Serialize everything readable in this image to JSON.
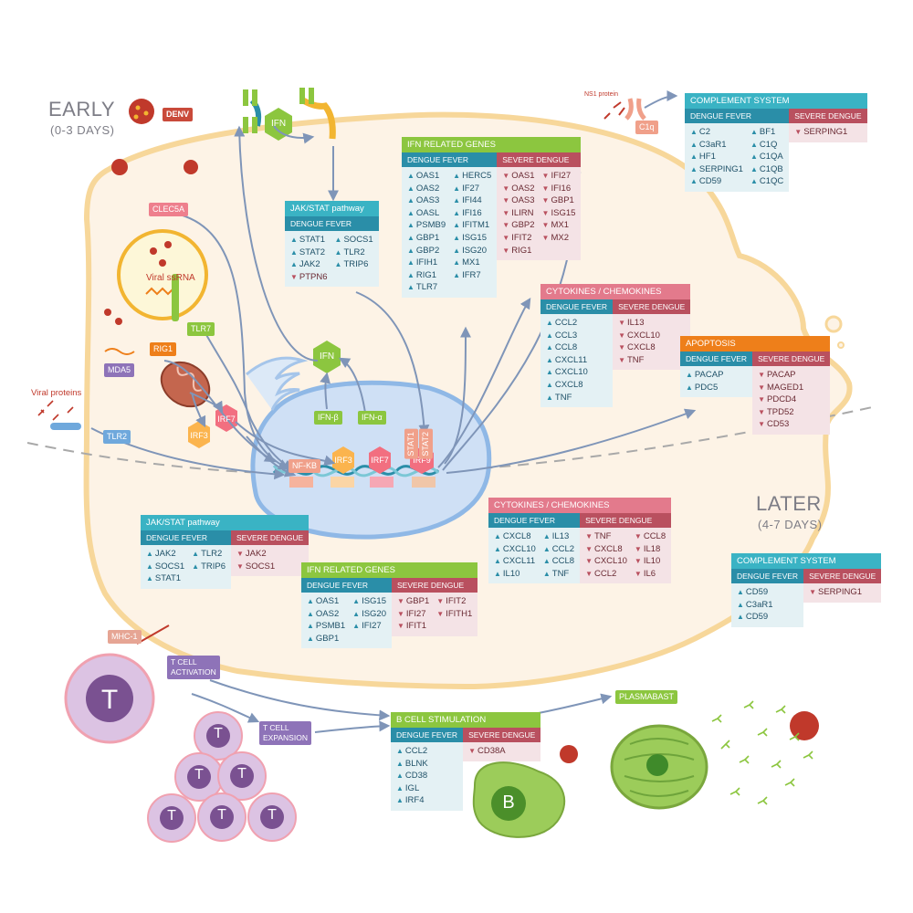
{
  "phases": {
    "early": {
      "title": "EARLY",
      "sub": "(0-3 DAYS)"
    },
    "later": {
      "title": "LATER",
      "sub": "(4-7 DAYS)"
    }
  },
  "virus_tag": "DENV",
  "labels": {
    "clec5a": "CLEC5A",
    "viral_ssrna": "Viral ssRNA",
    "tlr7": "TLR7",
    "rig1": "RIG1",
    "mda5": "MDA5",
    "viral_proteins": "Viral proteins",
    "tlr2": "TLR2",
    "irf3_left": "IRF3",
    "irf7_left": "IRF7",
    "ifn_top": "IFN",
    "ifn_mid": "IFN",
    "ifn_beta": "IFN-β",
    "ifn_alpha": "IFN-α",
    "nfkb": "NF-KB",
    "irf3": "IRF3",
    "irf7": "IRF7",
    "irf9": "IRF9",
    "stat1": "STAT1",
    "stat2": "STAT2",
    "ns1": "NS1 protein",
    "c1q": "C1q",
    "mhc1": "MHC-1",
    "t_activation": "T CELL\nACTIVATION",
    "t_expansion": "T CELL\nEXPANSION",
    "plasmablast": "PLASMABAST",
    "t": "T",
    "b": "B"
  },
  "panels": {
    "jak_top": {
      "title": "JAK/STAT pathway",
      "df_label": "DENGUE FEVER",
      "df": [
        [
          "STAT1",
          "STAT2",
          "JAK2",
          "PTPN6"
        ],
        [
          "SOCS1",
          "TLR2",
          "TRIP6"
        ]
      ],
      "df_dir": [
        [
          "up",
          "up",
          "up",
          "dn"
        ],
        [
          "up",
          "up",
          "up"
        ]
      ]
    },
    "ifn_top": {
      "title": "IFN RELATED GENES",
      "df_label": "DENGUE FEVER",
      "sd_label": "SEVERE DENGUE",
      "df": [
        [
          "OAS1",
          "OAS2",
          "OAS3",
          "OASL",
          "PSMB9",
          "GBP1",
          "GBP2",
          "IFIH1",
          "RIG1",
          "TLR7"
        ],
        [
          "HERC5",
          "IF27",
          "IFI44",
          "IFI16",
          "IFITM1",
          "ISG15",
          "ISG20",
          "MX1",
          "IFR7"
        ]
      ],
      "sd": [
        [
          "OAS1",
          "OAS2",
          "OAS3",
          "ILIRN",
          "GBP2",
          "IFIT2",
          "RIG1"
        ],
        [
          "IFI27",
          "IFI16",
          "GBP1",
          "ISG15",
          "MX1",
          "MX2"
        ]
      ]
    },
    "cyto_top": {
      "title": "CYTOKINES / CHEMOKINES",
      "df_label": "DENGUE FEVER",
      "sd_label": "SEVERE DENGUE",
      "df": [
        [
          "CCL2",
          "CCL3",
          "CCL8",
          "CXCL11",
          "CXCL10",
          "CXCL8",
          "TNF"
        ]
      ],
      "sd": [
        [
          "IL13",
          "CXCL10",
          "CXCL8",
          "TNF"
        ]
      ]
    },
    "apoptosis": {
      "title": "APOPTOSIS",
      "df_label": "DENGUE FEVER",
      "sd_label": "SEVERE DENGUE",
      "df": [
        [
          "PACAP",
          "PDC5"
        ]
      ],
      "sd": [
        [
          "PACAP",
          "MAGED1",
          "PDCD4",
          "TPD52",
          "CD53"
        ]
      ]
    },
    "comp_top": {
      "title": "COMPLEMENT SYSTEM",
      "df_label": "DENGUE FEVER",
      "sd_label": "SEVERE DENGUE",
      "df": [
        [
          "C2",
          "C3aR1",
          "HF1",
          "SERPING1",
          "CD59"
        ],
        [
          "BF1",
          "C1Q",
          "C1QA",
          "C1QB",
          "C1QC"
        ]
      ],
      "sd": [
        [
          "SERPING1"
        ]
      ]
    },
    "jak_bottom": {
      "title": "JAK/STAT pathway",
      "df_label": "DENGUE FEVER",
      "sd_label": "SEVERE DENGUE",
      "df": [
        [
          "JAK2",
          "SOCS1",
          "STAT1"
        ],
        [
          "TLR2",
          "TRIP6"
        ]
      ],
      "sd": [
        [
          "JAK2",
          "SOCS1"
        ]
      ]
    },
    "ifn_bottom": {
      "title": "IFN RELATED GENES",
      "df_label": "DENGUE FEVER",
      "sd_label": "SEVERE DENGUE",
      "df": [
        [
          "OAS1",
          "OAS2",
          "PSMB1",
          "GBP1"
        ],
        [
          "ISG15",
          "ISG20",
          "IFI27"
        ]
      ],
      "sd": [
        [
          "GBP1",
          "IFI27",
          "IFIT1"
        ],
        [
          "IFIT2",
          "IFITH1"
        ]
      ]
    },
    "cyto_bottom": {
      "title": "CYTOKINES / CHEMOKINES",
      "df_label": "DENGUE FEVER",
      "sd_label": "SEVERE DENGUE",
      "df": [
        [
          "CXCL8",
          "CXCL10",
          "CXCL11",
          "IL10"
        ],
        [
          "IL13",
          "CCL2",
          "CCL8",
          "TNF"
        ]
      ],
      "sd": [
        [
          "TNF",
          "CXCL8",
          "CXCL10",
          "CCL2"
        ],
        [
          "CCL8",
          "IL18",
          "IL10",
          "IL6"
        ]
      ]
    },
    "comp_bottom": {
      "title": "COMPLEMENT SYSTEM",
      "df_label": "DENGUE FEVER",
      "sd_label": "SEVERE DENGUE",
      "df": [
        [
          "CD59",
          "C3aR1",
          "CD59"
        ]
      ],
      "sd": [
        [
          "SERPING1"
        ]
      ]
    },
    "bcell": {
      "title": "B CELL STIMULATION",
      "df_label": "DENGUE FEVER",
      "sd_label": "SEVERE DENGUE",
      "df": [
        [
          "CCL2",
          "BLNK",
          "CD38",
          "IGL",
          "IRF4"
        ]
      ],
      "sd": [
        [
          "CD38A"
        ]
      ]
    }
  },
  "colors": {
    "cell_fill": "#fdf3e6",
    "cell_stroke": "#f7d79a",
    "nucleus_fill": "#cfe0f5",
    "nucleus_stroke": "#8fb8e6",
    "df_head": "#2a8ea8",
    "sd_head": "#b9505f",
    "t_cell": "#dcc3e3",
    "b_cell": "#9ccc5a",
    "virus": "#c0392b"
  }
}
